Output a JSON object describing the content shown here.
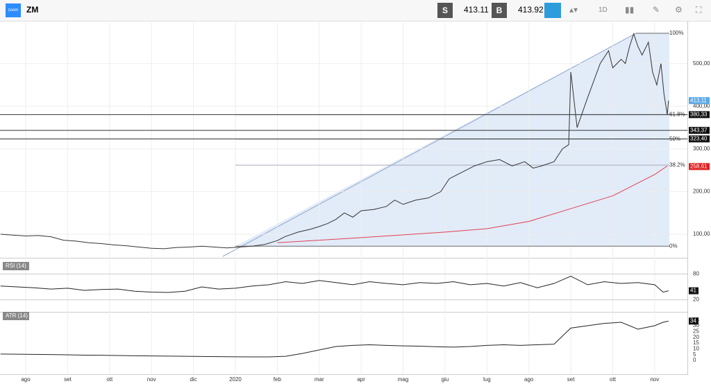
{
  "toolbar": {
    "logo": "zoom",
    "symbol": "ZM",
    "sell_label": "S",
    "sell_price": "413.11",
    "buy_label": "B",
    "buy_price": "413.92",
    "interval": "1D"
  },
  "chart_data": [
    {
      "type": "line",
      "name": "price",
      "x": [
        -0.6,
        -0.3,
        0,
        0.3,
        0.6,
        0.9,
        1.2,
        1.5,
        1.8,
        2.1,
        2.4,
        2.7,
        3,
        3.3,
        3.6,
        3.9,
        4.2,
        4.5,
        4.8,
        5.1,
        5.4,
        5.7,
        6,
        6.2,
        6.5,
        6.8,
        7,
        7.2,
        7.4,
        7.6,
        7.8,
        8,
        8.3,
        8.6,
        8.8,
        9,
        9.3,
        9.6,
        9.9,
        10.1,
        10.4,
        10.7,
        11,
        11.3,
        11.6,
        11.9,
        12.1,
        12.3,
        12.6,
        12.8,
        12.95,
        13,
        13.15,
        13.4,
        13.7,
        13.9,
        14,
        14.2,
        14.3,
        14.4,
        14.5,
        14.6,
        14.7,
        14.85,
        14.95,
        15.05,
        15.15,
        15.22,
        15.3,
        15.33
      ],
      "series": [
        {
          "name": "ZM",
          "color": "#333333",
          "values": [
            100,
            98,
            96,
            97,
            94,
            86,
            84,
            80,
            78,
            75,
            73,
            70,
            67,
            66,
            69,
            70,
            72,
            70,
            68,
            70,
            72,
            76,
            85,
            95,
            105,
            112,
            118,
            125,
            135,
            150,
            140,
            155,
            158,
            165,
            180,
            170,
            180,
            185,
            200,
            230,
            245,
            260,
            270,
            275,
            260,
            270,
            255,
            260,
            270,
            300,
            310,
            480,
            350,
            420,
            500,
            530,
            490,
            510,
            500,
            540,
            570,
            540,
            520,
            550,
            480,
            450,
            500,
            430,
            380,
            413
          ]
        },
        {
          "name": "MA",
          "color": "#e04050",
          "x": [
            6,
            8,
            10,
            11,
            12,
            13,
            14,
            14.5,
            15,
            15.3
          ],
          "values": [
            80,
            92,
            105,
            113,
            130,
            160,
            190,
            215,
            240,
            260
          ]
        }
      ],
      "xlim": [
        -0.613,
        15.78
      ],
      "ylim": [
        48,
        597
      ],
      "xticks": [
        {
          "value": 0,
          "label": "ago"
        },
        {
          "value": 1,
          "label": "set"
        },
        {
          "value": 2,
          "label": "ott"
        },
        {
          "value": 3,
          "label": "nov"
        },
        {
          "value": 4,
          "label": "dic"
        },
        {
          "value": 5,
          "label": "2020"
        },
        {
          "value": 6,
          "label": "feb"
        },
        {
          "value": 7,
          "label": "mar"
        },
        {
          "value": 8,
          "label": "apr"
        },
        {
          "value": 9,
          "label": "mag"
        },
        {
          "value": 10,
          "label": "giu"
        },
        {
          "value": 11,
          "label": "lug"
        },
        {
          "value": 12,
          "label": "ago"
        },
        {
          "value": 13,
          "label": "set"
        },
        {
          "value": 14,
          "label": "ott"
        },
        {
          "value": 15,
          "label": "nov"
        }
      ],
      "yticks": [
        {
          "value": 100,
          "label": "100,00"
        },
        {
          "value": 200,
          "label": "200,00"
        },
        {
          "value": 300,
          "label": "300,00"
        },
        {
          "value": 400,
          "label": "400,00"
        },
        {
          "value": 500,
          "label": "500,00"
        }
      ],
      "fib_levels": [
        {
          "value": 571,
          "label": "100%"
        },
        {
          "value": 380,
          "label": "61.8%"
        },
        {
          "value": 323,
          "label": "50%"
        },
        {
          "value": 262,
          "label": "38.2%"
        },
        {
          "value": 72,
          "label": "0%"
        }
      ],
      "hlines": [
        {
          "value": 380.33,
          "label": "380,33"
        },
        {
          "value": 343.37,
          "label": "343,37"
        },
        {
          "value": 323.4,
          "label": "323,40"
        }
      ],
      "last_price": {
        "value": 413.11,
        "label": "413,11"
      },
      "ma_last": {
        "value": 258.61,
        "label": "258,61"
      }
    },
    {
      "type": "line",
      "name": "rsi",
      "title": "RSI (14)",
      "x": [
        -0.6,
        -0.2,
        0.2,
        0.6,
        1,
        1.4,
        1.8,
        2.2,
        2.6,
        3,
        3.4,
        3.8,
        4.2,
        4.6,
        5,
        5.4,
        5.8,
        6.2,
        6.6,
        7,
        7.4,
        7.8,
        8.2,
        8.6,
        9,
        9.4,
        9.8,
        10.2,
        10.6,
        11,
        11.4,
        11.8,
        12.2,
        12.6,
        13,
        13.4,
        13.8,
        14.2,
        14.6,
        15,
        15.2,
        15.33
      ],
      "values": [
        52,
        50,
        48,
        45,
        47,
        42,
        44,
        45,
        40,
        38,
        37,
        40,
        50,
        45,
        47,
        52,
        55,
        62,
        58,
        65,
        60,
        55,
        62,
        58,
        55,
        60,
        58,
        62,
        55,
        58,
        52,
        60,
        48,
        58,
        75,
        55,
        62,
        58,
        60,
        55,
        38,
        41
      ],
      "ylim": [
        0,
        100
      ],
      "yticks": [
        20,
        80
      ],
      "last": 41
    },
    {
      "type": "line",
      "name": "atr",
      "title": "ATR (14)",
      "x": [
        -0.6,
        -0.2,
        0.2,
        0.6,
        1,
        1.4,
        1.8,
        2.2,
        2.6,
        3,
        3.4,
        3.8,
        4.2,
        4.6,
        5,
        5.4,
        5.8,
        6.2,
        6.6,
        7,
        7.4,
        7.8,
        8.2,
        8.6,
        9,
        9.4,
        9.8,
        10.2,
        10.6,
        11,
        11.4,
        11.8,
        12.2,
        12.6,
        13,
        13.4,
        13.8,
        14.2,
        14.6,
        15,
        15.2,
        15.33
      ],
      "values": [
        5.5,
        5.3,
        5.2,
        5,
        4.8,
        4.5,
        4.4,
        4.2,
        4,
        3.8,
        3.7,
        3.5,
        3.4,
        3.2,
        3.1,
        3,
        3,
        3.5,
        6,
        9,
        12,
        13,
        13.5,
        13,
        12.5,
        12.3,
        11.8,
        11.5,
        12,
        13,
        13.5,
        13,
        13.5,
        14,
        28,
        30,
        32,
        33,
        27,
        30,
        33,
        34
      ],
      "ylim": [
        -6,
        39
      ],
      "yticks": [
        0,
        5,
        10,
        15,
        20,
        25,
        30,
        35
      ],
      "last": 34
    }
  ]
}
